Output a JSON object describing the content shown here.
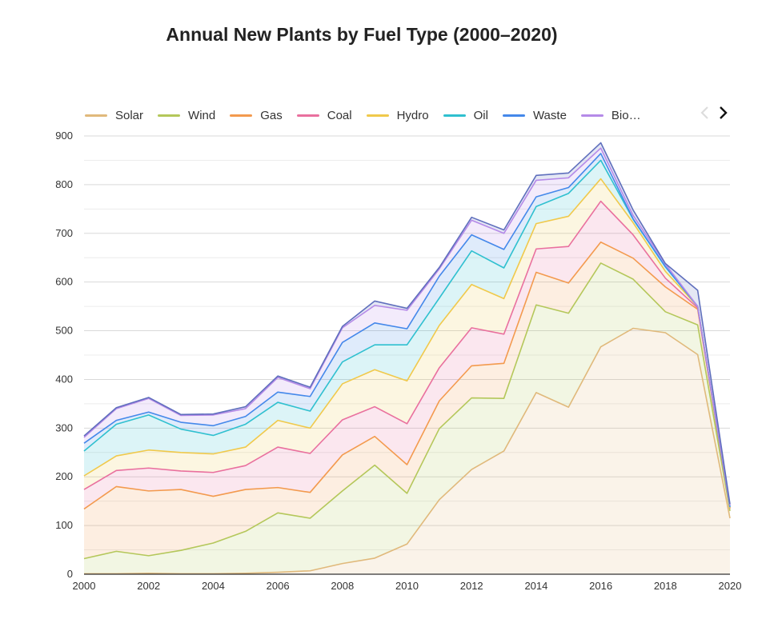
{
  "chart_data": {
    "type": "area",
    "stacked": true,
    "title": "Annual New Plants by Fuel Type (2000–2020)",
    "xlabel": "",
    "ylabel": "",
    "x": [
      2000,
      2001,
      2002,
      2003,
      2004,
      2005,
      2006,
      2007,
      2008,
      2009,
      2010,
      2011,
      2012,
      2013,
      2014,
      2015,
      2016,
      2017,
      2018,
      2019,
      2020
    ],
    "xticks": [
      "2000",
      "2002",
      "2004",
      "2006",
      "2008",
      "2010",
      "2012",
      "2014",
      "2016",
      "2018",
      "2020"
    ],
    "xlim": [
      2000,
      2020
    ],
    "ylim": [
      0,
      900
    ],
    "yticks": [
      "0",
      "100",
      "200",
      "300",
      "400",
      "500",
      "600",
      "700",
      "800",
      "900"
    ],
    "grid": true,
    "legend_position": "top",
    "series": [
      {
        "name": "Solar",
        "color": "#e0b97b",
        "values": [
          1,
          1,
          2,
          1,
          1,
          2,
          4,
          7,
          22,
          33,
          62,
          153,
          215,
          253,
          373,
          343,
          467,
          505,
          496,
          451,
          115
        ]
      },
      {
        "name": "Wind",
        "color": "#b4c75a",
        "values": [
          31,
          46,
          36,
          48,
          63,
          86,
          122,
          108,
          149,
          191,
          104,
          146,
          147,
          108,
          180,
          193,
          172,
          101,
          43,
          61,
          15
        ]
      },
      {
        "name": "Gas",
        "color": "#f39a4e",
        "values": [
          102,
          133,
          133,
          125,
          96,
          86,
          52,
          53,
          74,
          59,
          59,
          57,
          66,
          72,
          67,
          62,
          43,
          43,
          51,
          32,
          5
        ]
      },
      {
        "name": "Coal",
        "color": "#e9709e",
        "values": [
          40,
          33,
          47,
          38,
          49,
          49,
          83,
          80,
          72,
          61,
          84,
          68,
          78,
          60,
          48,
          75,
          84,
          48,
          18,
          3,
          1
        ]
      },
      {
        "name": "Hydro",
        "color": "#f0c94b",
        "values": [
          28,
          30,
          37,
          38,
          38,
          38,
          55,
          52,
          74,
          76,
          88,
          87,
          89,
          73,
          52,
          62,
          46,
          25,
          14,
          3,
          1
        ]
      },
      {
        "name": "Oil",
        "color": "#2fc0cf",
        "values": [
          51,
          65,
          72,
          48,
          38,
          47,
          37,
          35,
          45,
          51,
          74,
          56,
          69,
          63,
          35,
          47,
          38,
          7,
          9,
          0,
          1
        ]
      },
      {
        "name": "Waste",
        "color": "#4488ea",
        "values": [
          16,
          8,
          6,
          14,
          20,
          16,
          21,
          30,
          40,
          45,
          33,
          45,
          33,
          38,
          20,
          12,
          14,
          1,
          1,
          0,
          1
        ]
      },
      {
        "name": "Biomass",
        "color": "#b58ae8",
        "values": [
          12,
          24,
          28,
          14,
          22,
          16,
          30,
          16,
          30,
          36,
          38,
          15,
          30,
          33,
          34,
          20,
          11,
          7,
          5,
          0,
          2
        ]
      },
      {
        "name": "",
        "color": "#5f6fbd",
        "values": [
          3,
          2,
          2,
          2,
          2,
          4,
          3,
          3,
          3,
          9,
          4,
          3,
          6,
          7,
          10,
          10,
          11,
          11,
          1,
          33,
          3
        ]
      }
    ]
  },
  "legend": {
    "items": [
      {
        "label": "Solar",
        "color": "#e0b97b"
      },
      {
        "label": "Wind",
        "color": "#b4c75a"
      },
      {
        "label": "Gas",
        "color": "#f39a4e"
      },
      {
        "label": "Coal",
        "color": "#e9709e"
      },
      {
        "label": "Hydro",
        "color": "#f0c94b"
      },
      {
        "label": "Oil",
        "color": "#2fc0cf"
      },
      {
        "label": "Waste",
        "color": "#4488ea"
      },
      {
        "label": "Bio…",
        "color": "#b58ae8"
      }
    ],
    "prev_icon": "chevron-left-icon",
    "next_icon": "chevron-right-icon"
  }
}
